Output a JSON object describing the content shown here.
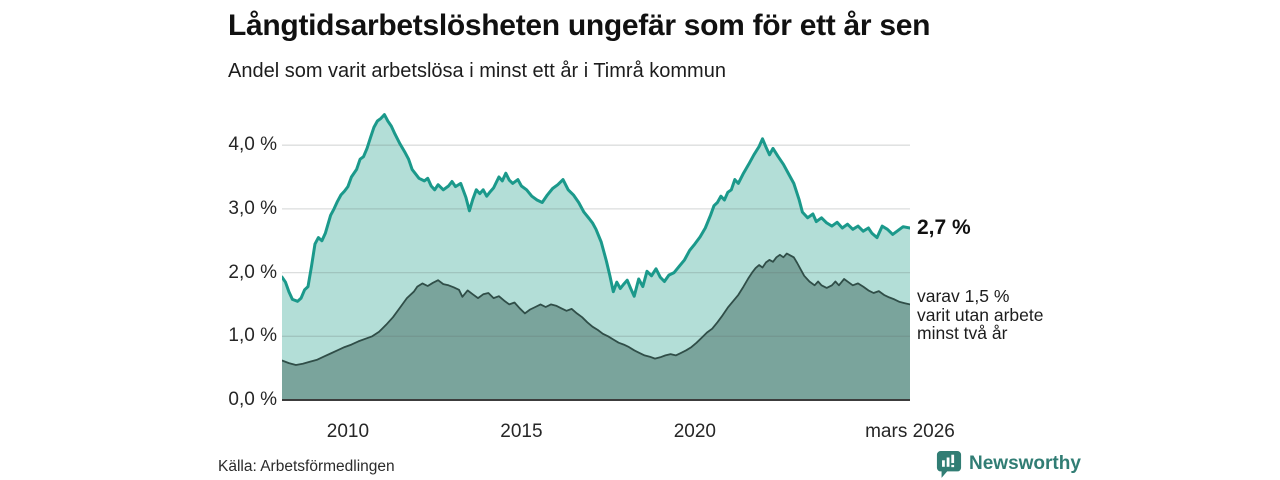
{
  "chart_data": {
    "type": "area",
    "title": "Långtidsarbetslösheten ungefär som för ett år sen",
    "subtitle": "Andel som varit arbetslösa i minst ett år i Timrå kommun",
    "source": "Källa: Arbetsförmedlingen",
    "unit": "%",
    "x_axis": {
      "range": [
        2008.1,
        2026.2
      ],
      "ticks": [
        {
          "label": "2010",
          "year": 2010
        },
        {
          "label": "2015",
          "year": 2015
        },
        {
          "label": "2020",
          "year": 2020
        },
        {
          "label": "mars 2026",
          "year": 2026.2
        }
      ]
    },
    "y_axis": {
      "range": [
        0,
        4.73
      ],
      "grid": true,
      "grid_color": "#dcdcdc",
      "ticks": [
        {
          "label": "0,0 %",
          "value": 0
        },
        {
          "label": "1,0 %",
          "value": 1
        },
        {
          "label": "2,0 %",
          "value": 2
        },
        {
          "label": "3,0 %",
          "value": 3
        },
        {
          "label": "4,0 %",
          "value": 4
        }
      ]
    },
    "series": [
      {
        "name": "Andel som varit arbetslösa i minst ett år",
        "line_color": "#1b998b",
        "fill_color": "#b3ded7",
        "end_value": 2.7,
        "end_label": "2,7 %",
        "points": [
          [
            2008.1,
            1.93
          ],
          [
            2008.2,
            1.85
          ],
          [
            2008.3,
            1.7
          ],
          [
            2008.4,
            1.58
          ],
          [
            2008.55,
            1.55
          ],
          [
            2008.65,
            1.6
          ],
          [
            2008.75,
            1.73
          ],
          [
            2008.85,
            1.78
          ],
          [
            2008.95,
            2.1
          ],
          [
            2009.05,
            2.45
          ],
          [
            2009.15,
            2.55
          ],
          [
            2009.25,
            2.5
          ],
          [
            2009.35,
            2.62
          ],
          [
            2009.5,
            2.9
          ],
          [
            2009.6,
            3.0
          ],
          [
            2009.7,
            3.12
          ],
          [
            2009.8,
            3.22
          ],
          [
            2009.9,
            3.28
          ],
          [
            2010.0,
            3.35
          ],
          [
            2010.1,
            3.5
          ],
          [
            2010.25,
            3.62
          ],
          [
            2010.35,
            3.78
          ],
          [
            2010.45,
            3.82
          ],
          [
            2010.55,
            3.95
          ],
          [
            2010.65,
            4.12
          ],
          [
            2010.75,
            4.28
          ],
          [
            2010.85,
            4.38
          ],
          [
            2010.95,
            4.42
          ],
          [
            2011.05,
            4.48
          ],
          [
            2011.15,
            4.38
          ],
          [
            2011.25,
            4.3
          ],
          [
            2011.35,
            4.18
          ],
          [
            2011.5,
            4.02
          ],
          [
            2011.65,
            3.88
          ],
          [
            2011.75,
            3.78
          ],
          [
            2011.85,
            3.62
          ],
          [
            2011.95,
            3.55
          ],
          [
            2012.05,
            3.48
          ],
          [
            2012.2,
            3.44
          ],
          [
            2012.3,
            3.48
          ],
          [
            2012.4,
            3.36
          ],
          [
            2012.5,
            3.3
          ],
          [
            2012.6,
            3.38
          ],
          [
            2012.75,
            3.3
          ],
          [
            2012.9,
            3.36
          ],
          [
            2013.0,
            3.43
          ],
          [
            2013.1,
            3.35
          ],
          [
            2013.25,
            3.4
          ],
          [
            2013.4,
            3.18
          ],
          [
            2013.5,
            2.97
          ],
          [
            2013.6,
            3.15
          ],
          [
            2013.7,
            3.3
          ],
          [
            2013.8,
            3.24
          ],
          [
            2013.9,
            3.3
          ],
          [
            2014.0,
            3.2
          ],
          [
            2014.1,
            3.27
          ],
          [
            2014.2,
            3.33
          ],
          [
            2014.35,
            3.5
          ],
          [
            2014.45,
            3.44
          ],
          [
            2014.55,
            3.56
          ],
          [
            2014.65,
            3.45
          ],
          [
            2014.75,
            3.4
          ],
          [
            2014.9,
            3.46
          ],
          [
            2015.0,
            3.36
          ],
          [
            2015.15,
            3.3
          ],
          [
            2015.3,
            3.2
          ],
          [
            2015.45,
            3.14
          ],
          [
            2015.6,
            3.1
          ],
          [
            2015.75,
            3.22
          ],
          [
            2015.9,
            3.32
          ],
          [
            2016.05,
            3.38
          ],
          [
            2016.2,
            3.46
          ],
          [
            2016.35,
            3.3
          ],
          [
            2016.5,
            3.22
          ],
          [
            2016.65,
            3.1
          ],
          [
            2016.8,
            2.95
          ],
          [
            2016.95,
            2.85
          ],
          [
            2017.05,
            2.78
          ],
          [
            2017.15,
            2.68
          ],
          [
            2017.3,
            2.48
          ],
          [
            2017.45,
            2.18
          ],
          [
            2017.55,
            1.95
          ],
          [
            2017.65,
            1.7
          ],
          [
            2017.75,
            1.85
          ],
          [
            2017.85,
            1.75
          ],
          [
            2017.95,
            1.82
          ],
          [
            2018.05,
            1.88
          ],
          [
            2018.15,
            1.75
          ],
          [
            2018.25,
            1.63
          ],
          [
            2018.38,
            1.9
          ],
          [
            2018.5,
            1.78
          ],
          [
            2018.62,
            2.02
          ],
          [
            2018.75,
            1.95
          ],
          [
            2018.88,
            2.06
          ],
          [
            2019.0,
            1.93
          ],
          [
            2019.12,
            1.86
          ],
          [
            2019.25,
            1.96
          ],
          [
            2019.4,
            2.0
          ],
          [
            2019.55,
            2.1
          ],
          [
            2019.7,
            2.2
          ],
          [
            2019.85,
            2.35
          ],
          [
            2020.0,
            2.45
          ],
          [
            2020.15,
            2.56
          ],
          [
            2020.3,
            2.7
          ],
          [
            2020.45,
            2.9
          ],
          [
            2020.55,
            3.05
          ],
          [
            2020.65,
            3.1
          ],
          [
            2020.75,
            3.2
          ],
          [
            2020.85,
            3.14
          ],
          [
            2020.95,
            3.26
          ],
          [
            2021.05,
            3.3
          ],
          [
            2021.15,
            3.46
          ],
          [
            2021.25,
            3.4
          ],
          [
            2021.4,
            3.56
          ],
          [
            2021.55,
            3.7
          ],
          [
            2021.7,
            3.85
          ],
          [
            2021.85,
            3.98
          ],
          [
            2021.95,
            4.1
          ],
          [
            2022.05,
            3.97
          ],
          [
            2022.15,
            3.85
          ],
          [
            2022.25,
            3.95
          ],
          [
            2022.4,
            3.82
          ],
          [
            2022.55,
            3.7
          ],
          [
            2022.7,
            3.55
          ],
          [
            2022.85,
            3.4
          ],
          [
            2023.0,
            3.15
          ],
          [
            2023.1,
            2.95
          ],
          [
            2023.25,
            2.86
          ],
          [
            2023.4,
            2.92
          ],
          [
            2023.5,
            2.8
          ],
          [
            2023.65,
            2.86
          ],
          [
            2023.8,
            2.78
          ],
          [
            2023.95,
            2.73
          ],
          [
            2024.1,
            2.79
          ],
          [
            2024.25,
            2.7
          ],
          [
            2024.4,
            2.76
          ],
          [
            2024.55,
            2.68
          ],
          [
            2024.7,
            2.73
          ],
          [
            2024.85,
            2.65
          ],
          [
            2025.0,
            2.7
          ],
          [
            2025.1,
            2.62
          ],
          [
            2025.25,
            2.55
          ],
          [
            2025.4,
            2.73
          ],
          [
            2025.55,
            2.68
          ],
          [
            2025.7,
            2.6
          ],
          [
            2025.85,
            2.66
          ],
          [
            2026.0,
            2.72
          ],
          [
            2026.2,
            2.7
          ]
        ]
      },
      {
        "name": "varav utan arbete minst två år",
        "line_color": "#304e48",
        "fill_color": "#7aa49c",
        "end_value": 1.5,
        "end_label": "varav 1,5 %\nvarit utan arbete\nminst två år",
        "points": [
          [
            2008.1,
            0.62
          ],
          [
            2008.3,
            0.58
          ],
          [
            2008.5,
            0.55
          ],
          [
            2008.7,
            0.57
          ],
          [
            2008.9,
            0.6
          ],
          [
            2009.1,
            0.63
          ],
          [
            2009.3,
            0.68
          ],
          [
            2009.5,
            0.73
          ],
          [
            2009.7,
            0.78
          ],
          [
            2009.9,
            0.83
          ],
          [
            2010.1,
            0.87
          ],
          [
            2010.3,
            0.92
          ],
          [
            2010.5,
            0.96
          ],
          [
            2010.7,
            1.0
          ],
          [
            2010.9,
            1.07
          ],
          [
            2011.1,
            1.18
          ],
          [
            2011.3,
            1.3
          ],
          [
            2011.5,
            1.45
          ],
          [
            2011.7,
            1.6
          ],
          [
            2011.9,
            1.7
          ],
          [
            2012.0,
            1.78
          ],
          [
            2012.15,
            1.83
          ],
          [
            2012.3,
            1.79
          ],
          [
            2012.45,
            1.84
          ],
          [
            2012.6,
            1.88
          ],
          [
            2012.75,
            1.82
          ],
          [
            2012.9,
            1.8
          ],
          [
            2013.05,
            1.77
          ],
          [
            2013.2,
            1.73
          ],
          [
            2013.3,
            1.62
          ],
          [
            2013.45,
            1.72
          ],
          [
            2013.6,
            1.66
          ],
          [
            2013.75,
            1.6
          ],
          [
            2013.9,
            1.66
          ],
          [
            2014.05,
            1.68
          ],
          [
            2014.2,
            1.6
          ],
          [
            2014.35,
            1.63
          ],
          [
            2014.5,
            1.56
          ],
          [
            2014.65,
            1.5
          ],
          [
            2014.8,
            1.53
          ],
          [
            2014.95,
            1.44
          ],
          [
            2015.1,
            1.36
          ],
          [
            2015.25,
            1.42
          ],
          [
            2015.4,
            1.46
          ],
          [
            2015.55,
            1.5
          ],
          [
            2015.7,
            1.46
          ],
          [
            2015.85,
            1.5
          ],
          [
            2016.0,
            1.48
          ],
          [
            2016.15,
            1.44
          ],
          [
            2016.3,
            1.4
          ],
          [
            2016.45,
            1.43
          ],
          [
            2016.6,
            1.36
          ],
          [
            2016.75,
            1.3
          ],
          [
            2016.9,
            1.22
          ],
          [
            2017.05,
            1.15
          ],
          [
            2017.2,
            1.1
          ],
          [
            2017.35,
            1.04
          ],
          [
            2017.5,
            1.0
          ],
          [
            2017.65,
            0.95
          ],
          [
            2017.8,
            0.9
          ],
          [
            2017.95,
            0.87
          ],
          [
            2018.1,
            0.83
          ],
          [
            2018.25,
            0.78
          ],
          [
            2018.4,
            0.74
          ],
          [
            2018.55,
            0.7
          ],
          [
            2018.7,
            0.68
          ],
          [
            2018.85,
            0.65
          ],
          [
            2019.0,
            0.67
          ],
          [
            2019.15,
            0.7
          ],
          [
            2019.3,
            0.72
          ],
          [
            2019.45,
            0.7
          ],
          [
            2019.6,
            0.74
          ],
          [
            2019.75,
            0.78
          ],
          [
            2019.9,
            0.83
          ],
          [
            2020.05,
            0.9
          ],
          [
            2020.2,
            0.98
          ],
          [
            2020.35,
            1.06
          ],
          [
            2020.5,
            1.12
          ],
          [
            2020.65,
            1.22
          ],
          [
            2020.8,
            1.33
          ],
          [
            2020.95,
            1.45
          ],
          [
            2021.1,
            1.55
          ],
          [
            2021.25,
            1.65
          ],
          [
            2021.4,
            1.78
          ],
          [
            2021.55,
            1.92
          ],
          [
            2021.65,
            2.0
          ],
          [
            2021.75,
            2.07
          ],
          [
            2021.85,
            2.12
          ],
          [
            2021.95,
            2.08
          ],
          [
            2022.05,
            2.16
          ],
          [
            2022.15,
            2.2
          ],
          [
            2022.25,
            2.17
          ],
          [
            2022.35,
            2.24
          ],
          [
            2022.45,
            2.28
          ],
          [
            2022.55,
            2.24
          ],
          [
            2022.65,
            2.3
          ],
          [
            2022.75,
            2.27
          ],
          [
            2022.85,
            2.24
          ],
          [
            2022.95,
            2.15
          ],
          [
            2023.05,
            2.05
          ],
          [
            2023.15,
            1.95
          ],
          [
            2023.3,
            1.86
          ],
          [
            2023.45,
            1.8
          ],
          [
            2023.55,
            1.86
          ],
          [
            2023.65,
            1.8
          ],
          [
            2023.8,
            1.76
          ],
          [
            2023.95,
            1.8
          ],
          [
            2024.05,
            1.86
          ],
          [
            2024.15,
            1.8
          ],
          [
            2024.3,
            1.9
          ],
          [
            2024.45,
            1.84
          ],
          [
            2024.55,
            1.8
          ],
          [
            2024.7,
            1.83
          ],
          [
            2024.85,
            1.78
          ],
          [
            2025.0,
            1.72
          ],
          [
            2025.15,
            1.68
          ],
          [
            2025.3,
            1.71
          ],
          [
            2025.45,
            1.65
          ],
          [
            2025.6,
            1.61
          ],
          [
            2025.75,
            1.58
          ],
          [
            2025.9,
            1.54
          ],
          [
            2026.05,
            1.52
          ],
          [
            2026.2,
            1.5
          ]
        ]
      }
    ]
  },
  "footer": {
    "brand": "Newsworthy",
    "brand_color": "#317d74"
  }
}
